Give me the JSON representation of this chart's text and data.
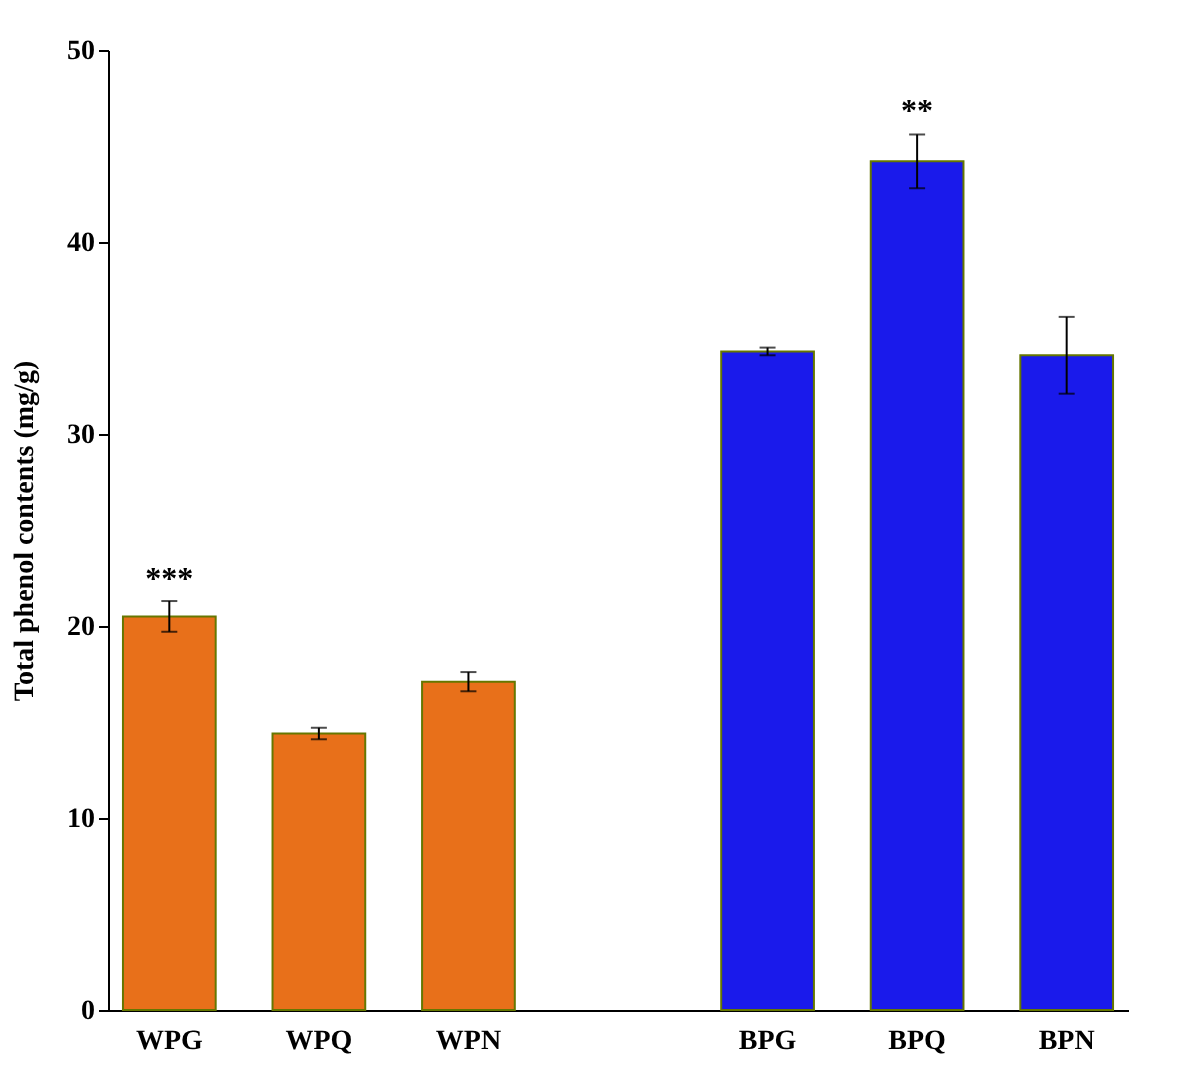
{
  "chart_data": {
    "type": "bar",
    "ylabel": "Total phenol contents (mg/g)",
    "categories": [
      "WPG",
      "WPQ",
      "WPN",
      null,
      "BPG",
      "BPQ",
      "BPN"
    ],
    "values": [
      20.5,
      14.4,
      17.1,
      null,
      34.3,
      44.2,
      34.1
    ],
    "errors": [
      0.8,
      0.3,
      0.5,
      null,
      0.2,
      1.4,
      2.0
    ],
    "colors": [
      "#e8701a",
      "#e8701a",
      "#e8701a",
      "#ffffff",
      "#1a1aeb",
      "#1a1aeb",
      "#1a1aeb"
    ],
    "ylim": [
      0,
      50
    ],
    "yticks": [
      0,
      10,
      20,
      30,
      40,
      50
    ],
    "annotations": [
      {
        "text": "***",
        "x": "WPG",
        "y": 21.6
      },
      {
        "text": "**",
        "x": "BPQ",
        "y": 46
      }
    ]
  }
}
